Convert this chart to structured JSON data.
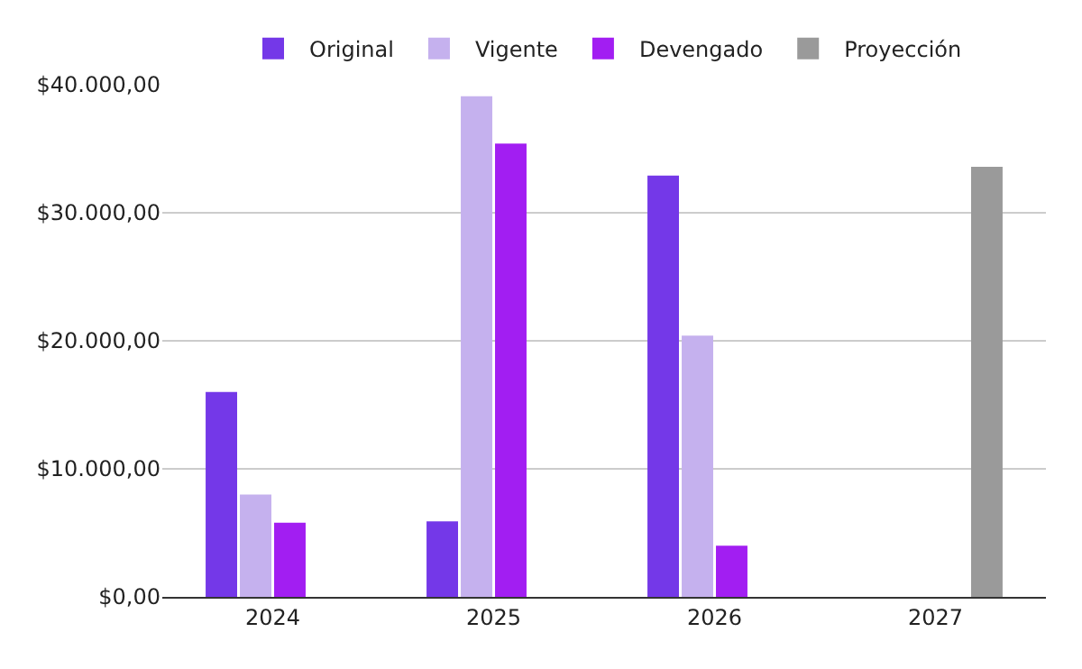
{
  "chart_data": {
    "type": "bar",
    "categories": [
      "2024",
      "2025",
      "2026",
      "2027"
    ],
    "series": [
      {
        "name": "Original",
        "color": "#7438e8",
        "values": [
          16000,
          5900,
          32900,
          null
        ]
      },
      {
        "name": "Vigente",
        "color": "#c5b1ee",
        "values": [
          8000,
          39100,
          20400,
          null
        ]
      },
      {
        "name": "Devengado",
        "color": "#a21ef2",
        "values": [
          5800,
          35400,
          4000,
          null
        ]
      },
      {
        "name": "Proyección",
        "color": "#9a9a9a",
        "values": [
          null,
          null,
          null,
          33600
        ]
      }
    ],
    "ylim": [
      0,
      40000
    ],
    "yticks": [
      {
        "value": 0,
        "label": "$0,00"
      },
      {
        "value": 10000,
        "label": "$10.000,00"
      },
      {
        "value": 20000,
        "label": "$20.000,00"
      },
      {
        "value": 30000,
        "label": "$30.000,00"
      },
      {
        "value": 40000,
        "label": "$40.000,00"
      }
    ],
    "grid": "y",
    "legend": "top"
  }
}
